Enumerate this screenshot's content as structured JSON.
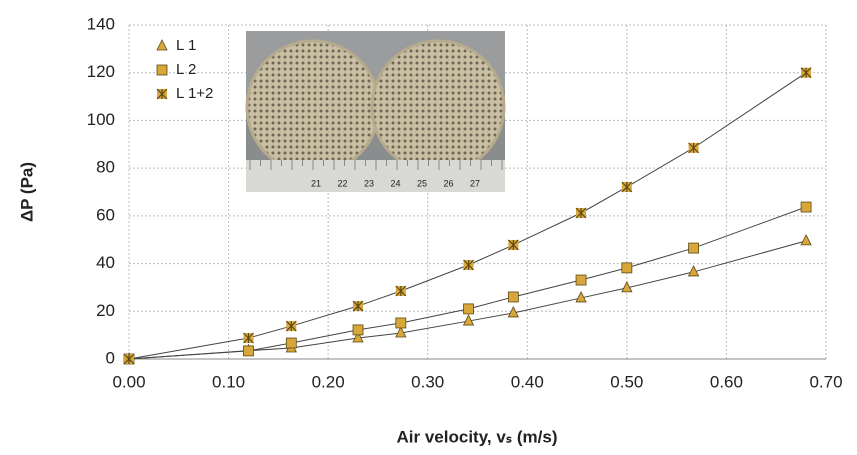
{
  "chart_data": {
    "type": "scatter",
    "x_label": "Air velocity, vₛ (m/s)",
    "y_label": "ΔP (Pa)",
    "x": [
      0,
      0.12,
      0.163,
      0.23,
      0.273,
      0.341,
      0.386,
      0.454,
      0.5,
      0.567,
      0.68
    ],
    "series": [
      {
        "name": "L 1",
        "color": "#d9a63a",
        "marker": "triangle",
        "values": [
          0,
          3.5,
          4.6,
          8.8,
          10.9,
          15.9,
          19.3,
          25.6,
          29.8,
          36.5,
          49.5
        ]
      },
      {
        "name": "L 2",
        "color": "#d9a63a",
        "marker": "square",
        "values": [
          0,
          3.4,
          6.7,
          12.2,
          15.1,
          21,
          26,
          33.1,
          38.2,
          46.5,
          63.7
        ]
      },
      {
        "name": "L 1+2",
        "color": "#d9a63a",
        "marker": "star",
        "values": [
          0,
          8.8,
          13.8,
          22.2,
          28.5,
          39.4,
          47.8,
          61.2,
          72.1,
          88.5,
          120
        ]
      }
    ],
    "xlim": [
      0,
      0.7
    ],
    "xticks": [
      {
        "value": 0,
        "label": "0.00"
      },
      {
        "value": 0.1,
        "label": "0.10"
      },
      {
        "value": 0.2,
        "label": "0.20"
      },
      {
        "value": 0.3,
        "label": "0.30"
      },
      {
        "value": 0.4,
        "label": "0.40"
      },
      {
        "value": 0.5,
        "label": "0.50"
      },
      {
        "value": 0.6,
        "label": "0.60"
      },
      {
        "value": 0.7,
        "label": "0.70"
      }
    ],
    "ylim": [
      0,
      140
    ],
    "yticks": [
      0,
      20,
      40,
      60,
      80,
      100,
      120,
      140
    ],
    "grid": true,
    "legend": "upper-left",
    "inset_ruler_labels": [
      "21",
      "22",
      "23",
      "24",
      "25",
      "26",
      "27"
    ]
  }
}
